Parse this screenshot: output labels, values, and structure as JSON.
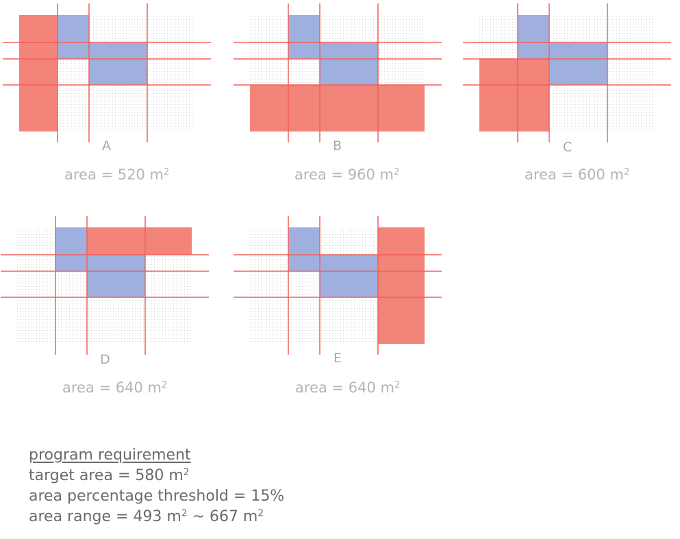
{
  "options": [
    {
      "letter": "A",
      "area_text": "area = 520 m",
      "unit_sup": "2"
    },
    {
      "letter": "B",
      "area_text": "area = 960 m",
      "unit_sup": "2"
    },
    {
      "letter": "C",
      "area_text": "area = 600 m",
      "unit_sup": "2"
    },
    {
      "letter": "D",
      "area_text": "area = 640 m",
      "unit_sup": "2"
    },
    {
      "letter": "E",
      "area_text": "area = 640 m",
      "unit_sup": "2"
    }
  ],
  "requirement": {
    "title": "program requirement",
    "target_prefix": "target area = 580 m",
    "target_sup": "2",
    "threshold": "area percentage threshold = 15%",
    "range_prefix": "area range = 493 m",
    "range_sup1": "2",
    "range_mid": " ~ 667 m",
    "range_sup2": "2"
  },
  "colors": {
    "existing_room": "#9fb0de",
    "candidate_room": "#f2847a",
    "grid_line": "#f0605a",
    "dot_grid": "#d2d2d2"
  }
}
